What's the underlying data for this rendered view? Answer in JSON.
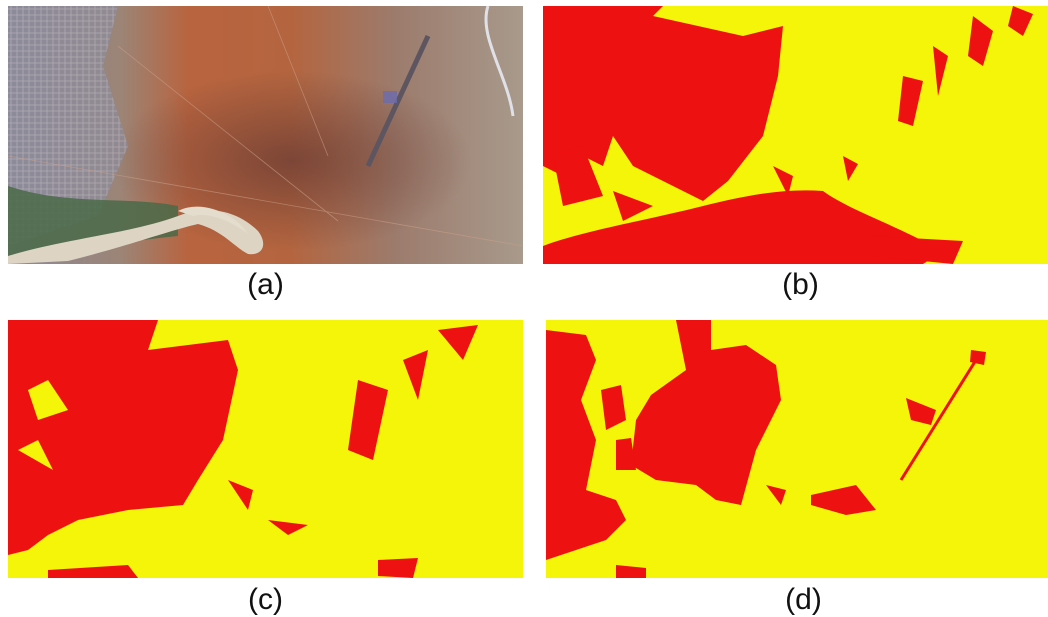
{
  "figure": {
    "panels": [
      {
        "id": "a",
        "caption": "(a)",
        "kind": "satellite-image"
      },
      {
        "id": "b",
        "caption": "(b)",
        "kind": "binary-mask"
      },
      {
        "id": "c",
        "caption": "(c)",
        "kind": "binary-mask"
      },
      {
        "id": "d",
        "caption": "(d)",
        "kind": "binary-mask"
      }
    ],
    "colors": {
      "mask_foreground": "#ee1111",
      "mask_background": "#f5f50a",
      "terrain_red": "#b8643f",
      "urban_gray": "#8e8c96",
      "vegetation": "#4a6a48",
      "riverbed": "#ddd4c4"
    }
  }
}
